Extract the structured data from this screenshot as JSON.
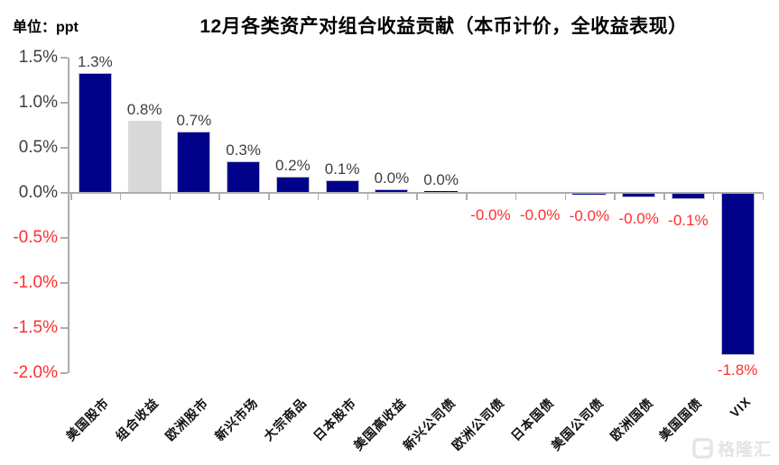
{
  "page": {
    "unit_label": "单位：ppt",
    "title": "12月各类资产对组合收益贡献（本币计价，全收益表现）",
    "watermark_text": "格隆汇"
  },
  "colors": {
    "bar_navy": "#01018A",
    "bar_border": "#BCBCD2",
    "bar_gray": "#D9D9D9",
    "negative_red": "#FC2F2F",
    "label_dark": "#3F3F3F",
    "category_text": "#111111",
    "axis_gray": "#ADADAD",
    "watermark_gray": "#E4E4E4",
    "background": "#FFFFFF"
  },
  "chart_data": {
    "type": "bar",
    "title": "12月各类资产对组合收益贡献（本币计价，全收益表现）",
    "unit": "ppt",
    "categories": [
      "美国股市",
      "组合收益",
      "欧洲股市",
      "新兴市场",
      "大宗商品",
      "日本股市",
      "美国高收益",
      "新兴公司债",
      "欧洲公司债",
      "日本国债",
      "美国公司债",
      "欧洲国债",
      "美国国债",
      "VIX"
    ],
    "values": [
      1.3,
      0.8,
      0.7,
      0.3,
      0.2,
      0.1,
      0.0,
      0.0,
      -0.0,
      -0.0,
      -0.0,
      -0.0,
      -0.1,
      -1.8
    ],
    "value_labels": [
      "1.3%",
      "0.8%",
      "0.7%",
      "0.3%",
      "0.2%",
      "0.1%",
      "0.0%",
      "0.0%",
      "-0.0%",
      "-0.0%",
      "-0.0%",
      "-0.0%",
      "-0.1%",
      "-1.8%"
    ],
    "render_values": [
      1.33,
      0.8,
      0.68,
      0.35,
      0.18,
      0.14,
      0.04,
      0.02,
      -0.005,
      -0.01,
      -0.02,
      -0.05,
      -0.07,
      -1.8
    ],
    "highlight_index": 1,
    "highlight_category": "组合收益",
    "y_ticks": [
      "1.5%",
      "1.0%",
      "0.5%",
      "0.0%",
      "-0.5%",
      "-1.0%",
      "-1.5%",
      "-2.0%"
    ],
    "ylim": [
      -2.0,
      1.5
    ],
    "grid": false,
    "legend": null,
    "xlabel": "",
    "ylabel": "单位：ppt"
  }
}
